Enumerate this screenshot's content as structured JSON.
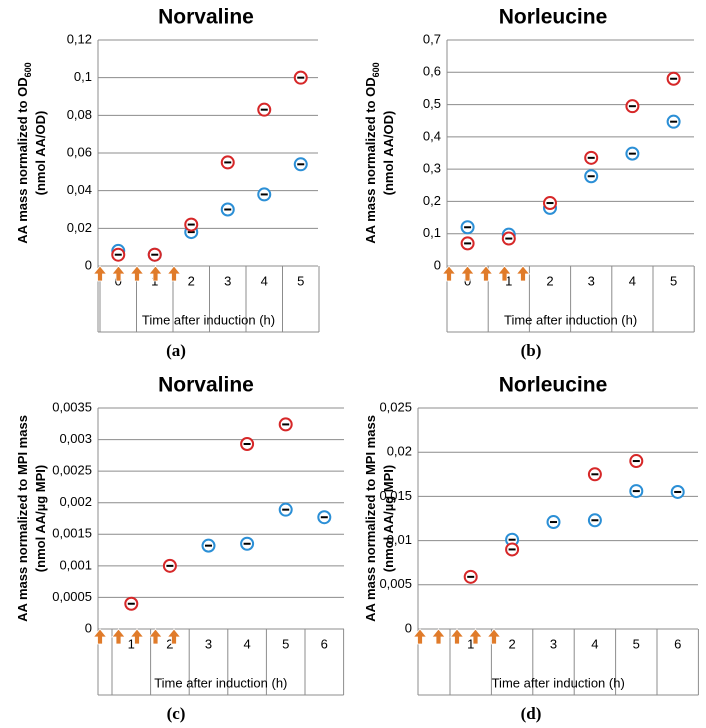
{
  "chart_data": [
    {
      "type": "scatter",
      "title": "Norvaline",
      "caption": "(a)",
      "y_label": [
        "AA mass normalized to OD",
        "(nmol AA/OD)"
      ],
      "y_label_subscript": "600",
      "x_label": "Time after induction (h)",
      "categories": [
        "0",
        "1",
        "2",
        "3",
        "4",
        "5"
      ],
      "series": [
        {
          "color": "#2b8fd6",
          "values": [
            0.008,
            0.006,
            0.018,
            0.03,
            0.038,
            0.054
          ]
        },
        {
          "color": "#d62728",
          "values": [
            0.006,
            0.006,
            0.022,
            0.055,
            0.083,
            0.1
          ]
        }
      ],
      "ylim": [
        0,
        0.12
      ],
      "yticks": [
        0,
        {
          "value": 0.02,
          "label": "0,02"
        },
        {
          "value": 0.04,
          "label": "0,04"
        },
        {
          "value": 0.06,
          "label": "0,06"
        },
        {
          "value": 0.08,
          "label": "0,08"
        },
        {
          "value": 0.1,
          "label": "0,1"
        },
        {
          "value": 0.12,
          "label": "0,12"
        }
      ],
      "grid": true
    },
    {
      "type": "scatter",
      "title": "Norleucine",
      "caption": "(b)",
      "y_label": [
        "AA mass normalized to OD",
        "(nmol AA/OD)"
      ],
      "y_label_subscript": "600",
      "x_label": "Time after induction (h)",
      "categories": [
        "0",
        "1",
        "2",
        "3",
        "4",
        "5"
      ],
      "series": [
        {
          "color": "#2b8fd6",
          "values": [
            0.12,
            0.097,
            0.18,
            0.278,
            0.348,
            0.447
          ]
        },
        {
          "color": "#d62728",
          "values": [
            0.07,
            0.085,
            0.195,
            0.335,
            0.495,
            0.58
          ]
        }
      ],
      "ylim": [
        0,
        0.7
      ],
      "yticks": [
        0,
        {
          "value": 0.1,
          "label": "0,1"
        },
        {
          "value": 0.2,
          "label": "0,2"
        },
        {
          "value": 0.3,
          "label": "0,3"
        },
        {
          "value": 0.4,
          "label": "0,4"
        },
        {
          "value": 0.5,
          "label": "0,5"
        },
        {
          "value": 0.6,
          "label": "0,6"
        },
        {
          "value": 0.7,
          "label": "0,7"
        }
      ],
      "grid": true
    },
    {
      "type": "scatter",
      "title": "Norvaline",
      "caption": "(c)",
      "y_label": [
        "AA mass normalized to MPI mass",
        "(nmol AA/µg MPI)"
      ],
      "x_label": "Time after induction (h)",
      "categories": [
        "1",
        "2",
        "3",
        "4",
        "5",
        "6"
      ],
      "series": [
        {
          "color": "#2b8fd6",
          "values": [
            null,
            null,
            0.00132,
            0.00135,
            0.00189,
            0.00177
          ]
        },
        {
          "color": "#d62728",
          "values": [
            0.0004,
            0.001,
            null,
            0.00293,
            0.00324,
            null
          ]
        }
      ],
      "ylim": [
        0,
        0.0035
      ],
      "yticks": [
        0,
        {
          "value": 0.0005,
          "label": "0,0005"
        },
        {
          "value": 0.001,
          "label": "0,001"
        },
        {
          "value": 0.0015,
          "label": "0,0015"
        },
        {
          "value": 0.002,
          "label": "0,002"
        },
        {
          "value": 0.0025,
          "label": "0,0025"
        },
        {
          "value": 0.003,
          "label": "0,003"
        },
        {
          "value": 0.0035,
          "label": "0,0035"
        }
      ],
      "grid": true
    },
    {
      "type": "scatter",
      "title": "Norleucine",
      "caption": "(d)",
      "y_label": [
        "AA mass normalized to MPI mass",
        "(nmol AA/µg MPI)"
      ],
      "x_label": "Time after induction (h)",
      "categories": [
        "1",
        "2",
        "3",
        "4",
        "5",
        "6"
      ],
      "series": [
        {
          "color": "#2b8fd6",
          "values": [
            null,
            0.0101,
            0.0121,
            0.0123,
            0.0156,
            0.0155
          ]
        },
        {
          "color": "#d62728",
          "values": [
            0.0059,
            0.009,
            null,
            0.0175,
            0.019,
            null
          ]
        }
      ],
      "ylim": [
        0,
        0.025
      ],
      "yticks": [
        0,
        {
          "value": 0.005,
          "label": "0,005"
        },
        {
          "value": 0.01,
          "label": "0,01"
        },
        {
          "value": 0.015,
          "label": "0,015"
        },
        {
          "value": 0.02,
          "label": "0,02"
        },
        {
          "value": 0.025,
          "label": "0,025"
        }
      ],
      "grid": true
    }
  ]
}
